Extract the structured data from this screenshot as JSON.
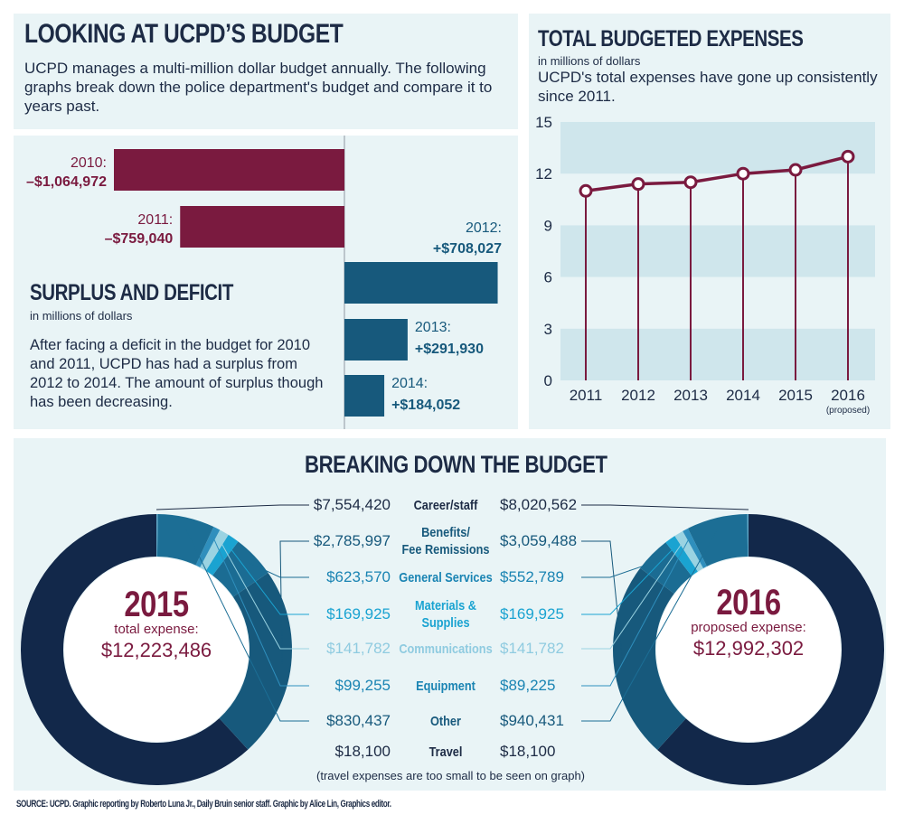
{
  "intro": {
    "title": "LOOKING AT UCPD’S BUDGET",
    "text": "UCPD manages a multi-million dollar budget annually. The following graphs break down the police department's budget and compare it to years past."
  },
  "surplus": {
    "title": "SURPLUS AND DEFICIT",
    "subtitle": "in millions of dollars",
    "text": "After facing a deficit in the budget for 2010 and 2011, UCPD has had a surplus from 2012 to 2014. The amount of surplus though has been decreasing."
  },
  "expenses": {
    "title": "TOTAL BUDGETED EXPENSES",
    "subtitle": "in millions of dollars",
    "text": "UCPD's total expenses have gone up consistently since 2011."
  },
  "breakdown": {
    "title": "BREAKING DOWN THE BUDGET",
    "left": {
      "year": "2015",
      "label": "total expense:",
      "total": "$12,223,486"
    },
    "right": {
      "year": "2016",
      "label": "proposed expense:",
      "total": "$12,992,302"
    },
    "travel_note": "(travel expenses are too small to be seen on graph)"
  },
  "source": "SOURCE: UCPD. Graphic reporting by Roberto Luna Jr., Daily Bruin senior staff. Graphic by Alice Lin, Graphics editor.",
  "colors": {
    "maroon": "#7a1a3f",
    "navy": "#12284a",
    "blue": "#17597c",
    "panel": "#e9f4f6",
    "band": "#cfe6ec"
  },
  "chart_data": [
    {
      "type": "bar",
      "title": "SURPLUS AND DEFICIT",
      "ylabel": "in millions of dollars",
      "orientation": "horizontal",
      "categories": [
        "2010",
        "2011",
        "2012",
        "2013",
        "2014"
      ],
      "values": [
        -1064972,
        -759040,
        708027,
        291930,
        184052
      ],
      "labels": [
        "2010:",
        "2011:",
        "2012:",
        "2013:",
        "2014:"
      ],
      "value_labels": [
        "–$1,064,972",
        "–$759,040",
        "+$708,027",
        "+$291,930",
        "+$184,052"
      ]
    },
    {
      "type": "line",
      "title": "TOTAL BUDGETED EXPENSES",
      "ylabel": "in millions of dollars",
      "categories": [
        "2011",
        "2012",
        "2013",
        "2014",
        "2015",
        "2016"
      ],
      "values": [
        11.0,
        11.4,
        11.5,
        12.0,
        12.22,
        12.99
      ],
      "ylim": [
        0,
        15
      ],
      "yticks": [
        "0",
        "3",
        "6",
        "9",
        "12",
        "15"
      ],
      "note_2016": "(proposed)"
    },
    {
      "type": "pie",
      "title": "2015 total expense",
      "categories": [
        "Career/staff",
        "Benefits/ Fee Remissions",
        "General Services",
        "Materials & Supplies",
        "Communications",
        "Equipment",
        "Other",
        "Travel"
      ],
      "values": [
        7554420,
        2785997,
        623570,
        169925,
        141782,
        99255,
        830437,
        18100
      ],
      "value_labels": [
        "$7,554,420",
        "$2,785,997",
        "$623,570",
        "$169,925",
        "$141,782",
        "$99,255",
        "$830,437",
        "$18,100"
      ]
    },
    {
      "type": "pie",
      "title": "2016 proposed expense",
      "categories": [
        "Career/staff",
        "Benefits/ Fee Remissions",
        "General Services",
        "Materials & Supplies",
        "Communications",
        "Equipment",
        "Other",
        "Travel"
      ],
      "values": [
        8020562,
        3059488,
        552789,
        169925,
        141782,
        89225,
        940431,
        18100
      ],
      "value_labels": [
        "$8,020,562",
        "$3,059,488",
        "$552,789",
        "$169,925",
        "$141,782",
        "$89,225",
        "$940,431",
        "$18,100"
      ]
    }
  ],
  "category_labels": [
    {
      "line1": "Career/staff",
      "line2": ""
    },
    {
      "line1": "Benefits/",
      "line2": "Fee Remissions"
    },
    {
      "line1": "General Services",
      "line2": ""
    },
    {
      "line1": "Materials &",
      "line2": "Supplies"
    },
    {
      "line1": "Communications",
      "line2": ""
    },
    {
      "line1": "Equipment",
      "line2": ""
    },
    {
      "line1": "Other",
      "line2": ""
    },
    {
      "line1": "Travel",
      "line2": ""
    }
  ]
}
